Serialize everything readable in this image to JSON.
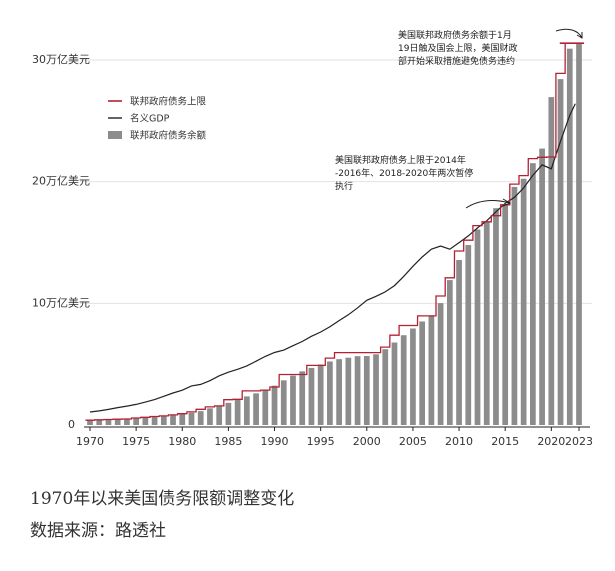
{
  "chart_data": {
    "type": "bar",
    "ylabels": [
      "0",
      "10万亿美元",
      "20万亿美元",
      "30万亿美元"
    ],
    "yticks": [
      0,
      10,
      20,
      30
    ],
    "ylim": [
      0,
      30
    ],
    "xticks": [
      1970,
      1975,
      1980,
      1985,
      1990,
      1995,
      2000,
      2005,
      2010,
      2015,
      2020,
      2023
    ],
    "xtick_labels": [
      "1970",
      "1975",
      "1980",
      "1985",
      "1990",
      "1995",
      "2000",
      "2005",
      "2010",
      "2015",
      "2020",
      "2023"
    ],
    "legend": [
      "联邦政府债务上限",
      "名义GDP",
      "联邦政府债务余额"
    ],
    "annotations": [
      [
        "美国联邦政府债务余额于1月",
        "19日触及国会上限，美国财政",
        "部开始采取措施避免债务违约"
      ],
      [
        "美国联邦政府债务上限于2014年",
        "-2016年、2018-2020年两次暂停",
        "执行"
      ]
    ],
    "colors": {
      "ceiling": "#b22234",
      "gdp": "#222222",
      "debt": "#8c8c8c"
    },
    "series": [
      {
        "name": "联邦政府债务余额",
        "x": [
          1970,
          1971,
          1972,
          1973,
          1974,
          1975,
          1976,
          1977,
          1978,
          1979,
          1980,
          1981,
          1982,
          1983,
          1984,
          1985,
          1986,
          1987,
          1988,
          1989,
          1990,
          1991,
          1992,
          1993,
          1994,
          1995,
          1996,
          1997,
          1998,
          1999,
          2000,
          2001,
          2002,
          2003,
          2004,
          2005,
          2006,
          2007,
          2008,
          2009,
          2010,
          2011,
          2012,
          2013,
          2014,
          2015,
          2016,
          2017,
          2018,
          2019,
          2020,
          2021,
          2022,
          2023
        ],
        "values": [
          0.37,
          0.41,
          0.44,
          0.47,
          0.48,
          0.54,
          0.63,
          0.71,
          0.78,
          0.83,
          0.91,
          1.0,
          1.14,
          1.37,
          1.56,
          1.82,
          2.12,
          2.35,
          2.6,
          2.86,
          3.23,
          3.67,
          4.06,
          4.41,
          4.69,
          4.97,
          5.22,
          5.41,
          5.53,
          5.66,
          5.67,
          5.81,
          6.23,
          6.78,
          7.38,
          7.93,
          8.51,
          9.01,
          10.02,
          11.91,
          13.56,
          14.79,
          16.07,
          16.74,
          17.82,
          18.15,
          19.57,
          20.24,
          21.52,
          22.72,
          26.95,
          28.43,
          30.93,
          31.4
        ]
      },
      {
        "name": "名义GDP",
        "x": [
          1970,
          1971,
          1972,
          1973,
          1974,
          1975,
          1976,
          1977,
          1978,
          1979,
          1980,
          1981,
          1982,
          1983,
          1984,
          1985,
          1986,
          1987,
          1988,
          1989,
          1990,
          1991,
          1992,
          1993,
          1994,
          1995,
          1996,
          1997,
          1998,
          1999,
          2000,
          2001,
          2002,
          2003,
          2004,
          2005,
          2006,
          2007,
          2008,
          2009,
          2010,
          2011,
          2012,
          2013,
          2014,
          2015,
          2016,
          2017,
          2018,
          2019,
          2020,
          2021,
          2022,
          2022.6
        ],
        "values": [
          1.07,
          1.16,
          1.28,
          1.43,
          1.55,
          1.69,
          1.88,
          2.09,
          2.36,
          2.63,
          2.86,
          3.21,
          3.34,
          3.64,
          4.04,
          4.34,
          4.58,
          4.86,
          5.24,
          5.64,
          5.96,
          6.16,
          6.52,
          6.86,
          7.29,
          7.64,
          8.07,
          8.58,
          9.06,
          9.63,
          10.25,
          10.58,
          10.94,
          11.46,
          12.21,
          13.04,
          13.81,
          14.45,
          14.71,
          14.45,
          14.99,
          15.54,
          16.2,
          16.78,
          17.52,
          18.22,
          18.71,
          19.48,
          20.53,
          21.38,
          21.06,
          23.32,
          25.46,
          26.4
        ]
      },
      {
        "name": "联邦政府债务上限",
        "x": [
          1970,
          1971,
          1972,
          1973,
          1974,
          1975,
          1976,
          1977,
          1978,
          1979,
          1980,
          1981,
          1982,
          1983,
          1984,
          1985,
          1986,
          1987,
          1988,
          1989,
          1990,
          1991,
          1992,
          1993,
          1994,
          1995,
          1996,
          1997,
          1998,
          1999,
          2000,
          2001,
          2002,
          2003,
          2004,
          2005,
          2006,
          2007,
          2008,
          2009,
          2010,
          2011,
          2012,
          2013,
          2014,
          2015,
          2016,
          2017,
          2018,
          2019,
          2020,
          2021,
          2022,
          2023
        ],
        "values": [
          0.395,
          0.43,
          0.45,
          0.475,
          0.495,
          0.577,
          0.636,
          0.7,
          0.752,
          0.83,
          0.925,
          1.08,
          1.29,
          1.49,
          1.57,
          2.08,
          2.11,
          2.8,
          2.8,
          2.87,
          3.12,
          4.15,
          4.15,
          4.15,
          4.9,
          4.9,
          5.5,
          5.95,
          5.95,
          5.95,
          5.95,
          5.95,
          6.4,
          7.38,
          8.18,
          8.18,
          8.97,
          8.97,
          10.6,
          12.1,
          14.3,
          15.19,
          16.39,
          16.7,
          17.2,
          18.1,
          19.8,
          20.5,
          21.9,
          22.0,
          22.03,
          28.9,
          31.38,
          31.38
        ]
      }
    ]
  },
  "caption": {
    "title": "1970年以来美国债务限额调整变化",
    "source": "数据来源：路透社"
  }
}
